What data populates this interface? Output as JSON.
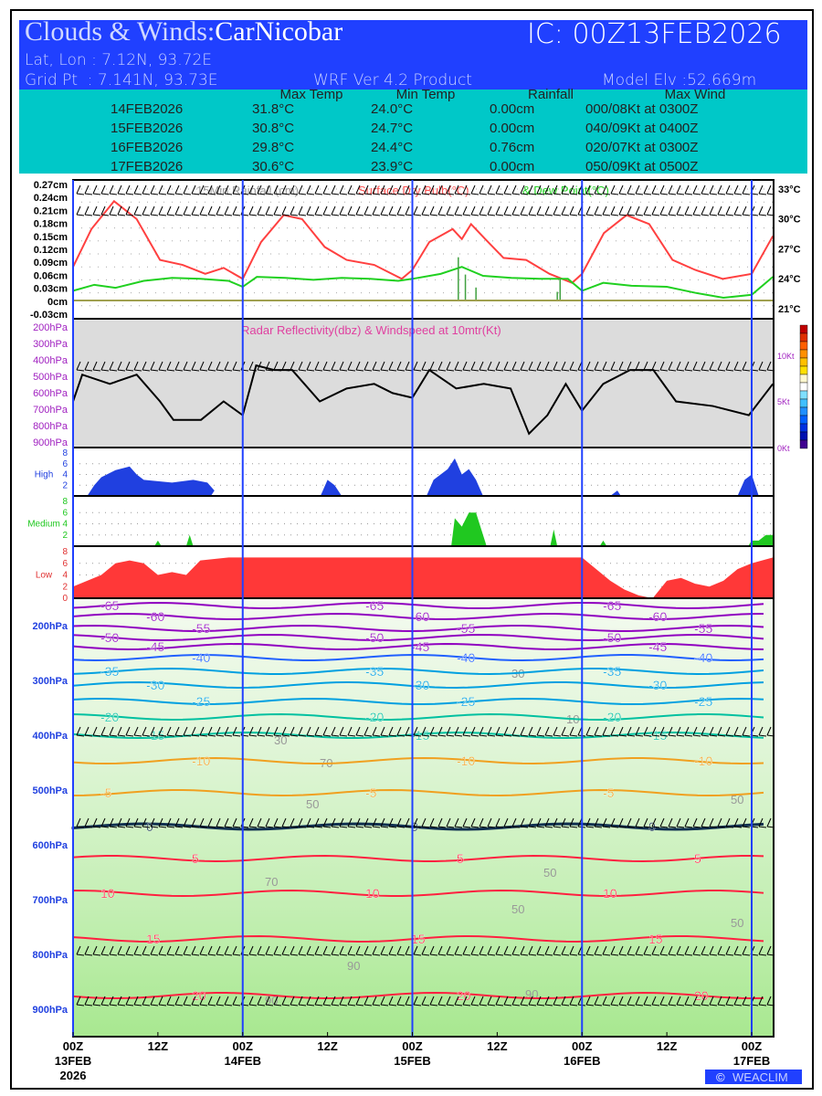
{
  "header": {
    "title_prefix": "Clouds & Winds:",
    "station": "CarNicobar",
    "ic": "IC: 00Z13FEB2026",
    "latlon": "Lat, Lon : 7.12N, 93.72E",
    "gridpt": "Grid Pt  : 7.141N, 93.73E",
    "product": "WRF Ver 4.2 Product",
    "elev": "Model Elv :52.669m"
  },
  "summary": {
    "headers": [
      "Max Temp",
      "Min Temp",
      "Rainfall",
      "Max Wind"
    ],
    "rows": [
      [
        "14FEB2026",
        "31.8°C",
        "24.0°C",
        "0.00cm",
        "000/08Kt at 0300Z"
      ],
      [
        "15FEB2026",
        "30.8°C",
        "24.7°C",
        "0.00cm",
        "040/09Kt at 0400Z"
      ],
      [
        "16FEB2026",
        "29.8°C",
        "24.4°C",
        "0.76cm",
        "020/07Kt at 0300Z"
      ],
      [
        "17FEB2026",
        "30.6°C",
        "23.9°C",
        "0.00cm",
        "050/09Kt at 0500Z"
      ]
    ]
  },
  "chart_data": [
    {
      "type": "line",
      "title": "15Min Rainfall (cm)  Surface Dry Bulb(°C)  & Dew Point(°C)",
      "title_parts": [
        "15Min Rainfall (cm)",
        "Surface Dry Bulb(°C)",
        "& Dew Point(°C)"
      ],
      "left_ticks": [
        "0.27cm",
        "0.24cm",
        "0.21cm",
        "0.18cm",
        "0.15cm",
        "0.12cm",
        "0.09cm",
        "0.06cm",
        "0.03cm",
        "0cm",
        "-0.03cm"
      ],
      "right_ticks": [
        "33°C",
        "30°C",
        "27°C",
        "24°C",
        "21°C"
      ],
      "ylim_temp": [
        20,
        34
      ],
      "series": [
        {
          "name": "Surface Dry Bulb",
          "color": "#ff4040",
          "points": [
            [
              0,
              25.2
            ],
            [
              2.6,
              29
            ],
            [
              5.8,
              31.8
            ],
            [
              9,
              30
            ],
            [
              12.3,
              25.9
            ],
            [
              15.5,
              25.4
            ],
            [
              18.7,
              24.5
            ],
            [
              21.3,
              25.1
            ],
            [
              24,
              24
            ],
            [
              26.6,
              27.7
            ],
            [
              29.8,
              30.4
            ],
            [
              32.4,
              30
            ],
            [
              35.6,
              27.2
            ],
            [
              38.7,
              25.9
            ],
            [
              42.6,
              25.4
            ],
            [
              46.5,
              24
            ],
            [
              48,
              24.9
            ],
            [
              50.4,
              27.7
            ],
            [
              53.7,
              29
            ],
            [
              55,
              28
            ],
            [
              56.3,
              29.5
            ],
            [
              58.3,
              28
            ],
            [
              60.9,
              26.1
            ],
            [
              64.1,
              25.9
            ],
            [
              67.4,
              24.5
            ],
            [
              70.6,
              23.6
            ],
            [
              72,
              24.5
            ],
            [
              75.1,
              28.6
            ],
            [
              78.3,
              30.4
            ],
            [
              81.5,
              29.5
            ],
            [
              84.8,
              25.9
            ],
            [
              88,
              24.9
            ],
            [
              91.9,
              24
            ],
            [
              96,
              24.5
            ],
            [
              99,
              28.3
            ]
          ]
        },
        {
          "name": "Dew Point",
          "color": "#20d020",
          "points": [
            [
              0,
              22.8
            ],
            [
              3,
              23.4
            ],
            [
              6,
              23.1
            ],
            [
              10,
              23.8
            ],
            [
              14,
              24.1
            ],
            [
              18,
              24
            ],
            [
              22,
              23.8
            ],
            [
              24,
              23.2
            ],
            [
              26,
              24.2
            ],
            [
              30,
              24.1
            ],
            [
              34,
              23.9
            ],
            [
              38,
              24.1
            ],
            [
              42,
              24
            ],
            [
              46,
              23.8
            ],
            [
              48,
              24
            ],
            [
              52,
              24.5
            ],
            [
              55,
              25.2
            ],
            [
              58,
              24.3
            ],
            [
              62,
              24.1
            ],
            [
              66,
              24
            ],
            [
              70,
              24
            ],
            [
              72,
              22.8
            ],
            [
              75,
              23.6
            ],
            [
              79,
              23.3
            ],
            [
              84,
              23.2
            ],
            [
              88,
              22.6
            ],
            [
              92,
              22.1
            ],
            [
              96,
              22.4
            ],
            [
              99,
              24.2
            ]
          ]
        },
        {
          "name": "15Min Rainfall",
          "color": "#808040",
          "bars": [
            [
              54.5,
              0.1
            ],
            [
              55.5,
              0.06
            ],
            [
              57,
              0.03
            ],
            [
              68.5,
              0.02
            ],
            [
              68.9,
              0.05
            ]
          ]
        }
      ]
    },
    {
      "type": "line",
      "title": "Radar Reflectivity(dbz) & Windspeed at 10mtr(Kt)",
      "left_ticks": [
        "200hPa",
        "300hPa",
        "400hPa",
        "500hPa",
        "600hPa",
        "700hPa",
        "800hPa",
        "900hPa"
      ],
      "right_ticks": [
        "10Kt",
        "5Kt",
        "0Kt"
      ],
      "ylim": [
        0,
        10
      ],
      "series": [
        {
          "name": "Windspeed 10m",
          "color": "#000",
          "points": [
            [
              0,
              5
            ],
            [
              1.3,
              7.9
            ],
            [
              5.2,
              6.9
            ],
            [
              9,
              7.9
            ],
            [
              12.3,
              5
            ],
            [
              14.2,
              3
            ],
            [
              18.1,
              3
            ],
            [
              21.3,
              5
            ],
            [
              24,
              3.5
            ],
            [
              25.9,
              8.9
            ],
            [
              28.5,
              8.4
            ],
            [
              31,
              8.4
            ],
            [
              34.9,
              5
            ],
            [
              38.7,
              6.4
            ],
            [
              42.6,
              6.9
            ],
            [
              45.2,
              5.9
            ],
            [
              48,
              5.4
            ],
            [
              50.4,
              8.4
            ],
            [
              54.2,
              6.4
            ],
            [
              58.1,
              6.9
            ],
            [
              61.9,
              6.4
            ],
            [
              64.5,
              1.5
            ],
            [
              67.1,
              3.5
            ],
            [
              69.7,
              6.9
            ],
            [
              72,
              4
            ],
            [
              75,
              6.9
            ],
            [
              78.8,
              8.4
            ],
            [
              82.1,
              8.4
            ],
            [
              85.3,
              5
            ],
            [
              90.5,
              4.5
            ],
            [
              95.6,
              3.5
            ],
            [
              99,
              6.9
            ]
          ]
        }
      ]
    },
    {
      "type": "area",
      "name": "High",
      "ticks": [
        "8",
        "6",
        "4",
        "2"
      ],
      "color": "#2040e0",
      "points": [
        [
          0,
          0
        ],
        [
          2,
          0
        ],
        [
          3,
          2
        ],
        [
          4,
          3.5
        ],
        [
          6,
          4.8
        ],
        [
          8,
          5.5
        ],
        [
          9,
          4
        ],
        [
          10,
          3
        ],
        [
          14,
          2.5
        ],
        [
          17,
          3
        ],
        [
          19,
          2.5
        ],
        [
          20,
          1
        ],
        [
          19.5,
          0
        ],
        [
          35,
          0
        ],
        [
          36,
          3
        ],
        [
          37,
          2
        ],
        [
          38,
          0
        ],
        [
          50,
          0
        ],
        [
          51,
          3
        ],
        [
          53,
          5
        ],
        [
          54,
          7
        ],
        [
          55,
          4
        ],
        [
          56,
          5
        ],
        [
          57,
          3
        ],
        [
          58,
          0
        ],
        [
          76,
          0
        ],
        [
          77,
          1
        ],
        [
          77.5,
          0
        ],
        [
          94,
          0
        ],
        [
          95,
          3
        ],
        [
          96,
          4
        ],
        [
          97,
          0
        ],
        [
          99,
          0
        ]
      ]
    },
    {
      "type": "area",
      "name": "Medium",
      "ticks": [
        "8",
        "6",
        "4",
        "2"
      ],
      "color": "#20c820",
      "points": [
        [
          0,
          0
        ],
        [
          11.5,
          0
        ],
        [
          12,
          1
        ],
        [
          12.5,
          0
        ],
        [
          16,
          0
        ],
        [
          16.5,
          2
        ],
        [
          17,
          0
        ],
        [
          53.5,
          0
        ],
        [
          54,
          5
        ],
        [
          55,
          3.5
        ],
        [
          56,
          6
        ],
        [
          57,
          6
        ],
        [
          58,
          2
        ],
        [
          58.5,
          0
        ],
        [
          67.5,
          0
        ],
        [
          68,
          3
        ],
        [
          68.5,
          0
        ],
        [
          74.5,
          0
        ],
        [
          75,
          1
        ],
        [
          75.5,
          0
        ],
        [
          95.5,
          0
        ],
        [
          96,
          1
        ],
        [
          97,
          1
        ],
        [
          98,
          2
        ],
        [
          99,
          2
        ]
      ]
    },
    {
      "type": "area",
      "name": "Low",
      "ticks": [
        "8",
        "6",
        "4",
        "2",
        "0"
      ],
      "color": "#ff3838",
      "points": [
        [
          0,
          2
        ],
        [
          2,
          3
        ],
        [
          4,
          4
        ],
        [
          6,
          6
        ],
        [
          8,
          6.5
        ],
        [
          10,
          6
        ],
        [
          12,
          4
        ],
        [
          14,
          4.5
        ],
        [
          16,
          4
        ],
        [
          18,
          6.5
        ],
        [
          22,
          7
        ],
        [
          30,
          7
        ],
        [
          50,
          7
        ],
        [
          72,
          7
        ],
        [
          74,
          5
        ],
        [
          76,
          3
        ],
        [
          78,
          1.5
        ],
        [
          80,
          0.5
        ],
        [
          82,
          0
        ],
        [
          84,
          3
        ],
        [
          86,
          3.5
        ],
        [
          88,
          2.5
        ],
        [
          90,
          2
        ],
        [
          92,
          3
        ],
        [
          94,
          5
        ],
        [
          96,
          6
        ],
        [
          99,
          7
        ]
      ]
    },
    {
      "type": "contour",
      "name": "Isotherms & Winds",
      "left_ticks": [
        "200hPa",
        "300hPa",
        "400hPa",
        "500hPa",
        "600hPa",
        "700hPa",
        "800hPa",
        "900hPa"
      ],
      "isotherms": [
        -65,
        -60,
        -55,
        -50,
        -45,
        -40,
        -35,
        -30,
        -25,
        -20,
        -15,
        -10,
        -5,
        0,
        5,
        10,
        15,
        20
      ],
      "rh_labels": [
        "30",
        "50",
        "70",
        "90",
        "10"
      ],
      "x_ticks": [
        [
          "00Z",
          "13FEB",
          "2026"
        ],
        [
          "12Z"
        ],
        [
          "00Z",
          "14FEB"
        ],
        [
          "12Z"
        ],
        [
          "00Z",
          "15FEB"
        ],
        [
          "12Z"
        ],
        [
          "00Z",
          "16FEB"
        ],
        [
          "12Z"
        ],
        [
          "00Z",
          "17FEB"
        ]
      ]
    }
  ],
  "credit": "WEACLIM"
}
